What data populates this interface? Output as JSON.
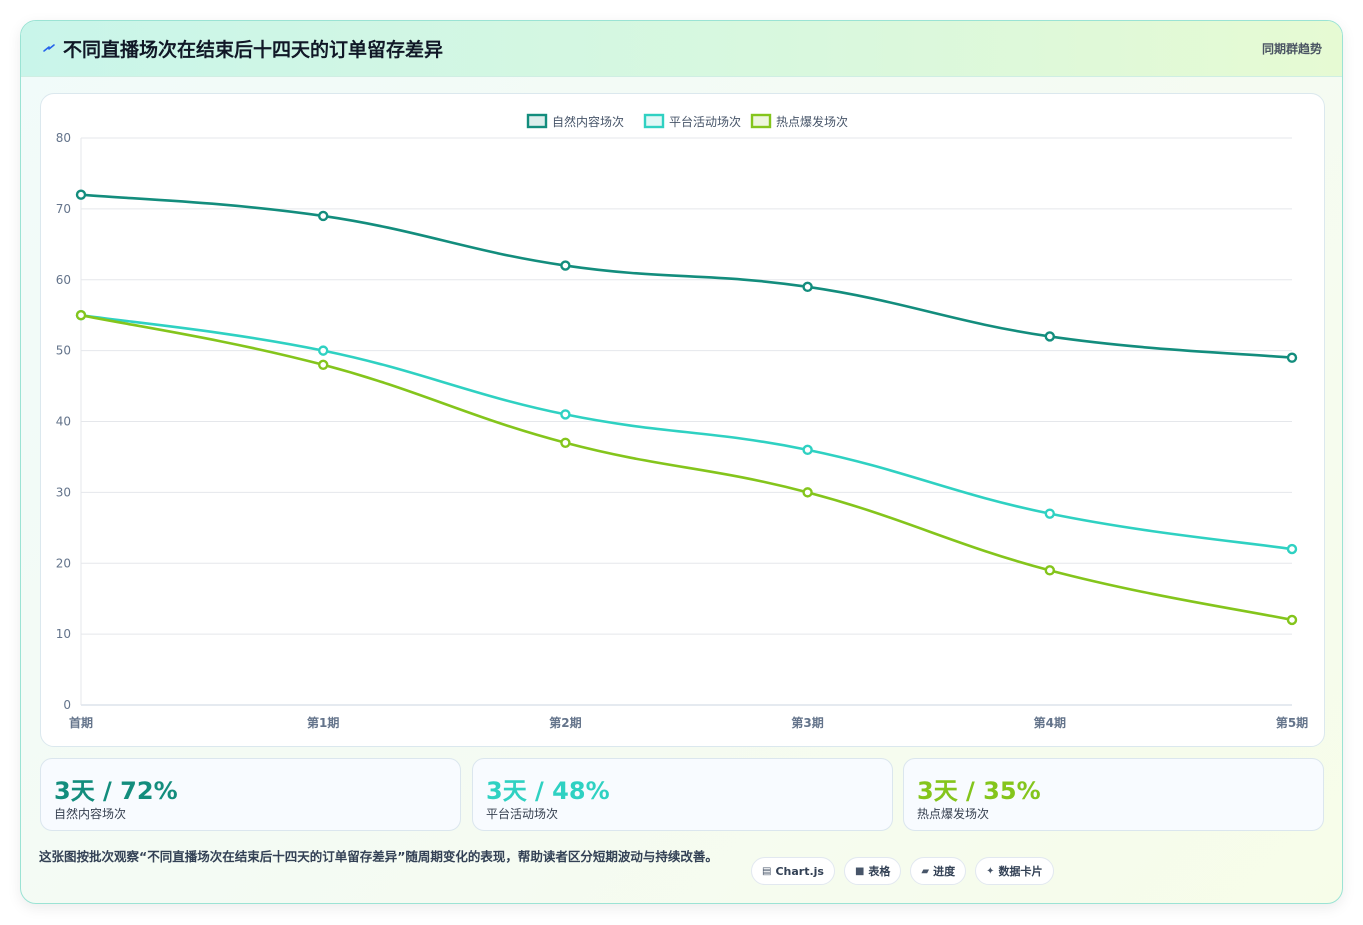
{
  "header": {
    "title": "不同直播场次在结束后十四天的订单留存差异",
    "badge": "同期群趋势"
  },
  "chart_data": {
    "type": "line",
    "categories": [
      "首期",
      "第1期",
      "第2期",
      "第3期",
      "第4期",
      "第5期"
    ],
    "series": [
      {
        "name": "自然内容场次",
        "color": "#138d7d",
        "values": [
          72,
          69,
          62,
          59,
          52,
          49
        ]
      },
      {
        "name": "平台活动场次",
        "color": "#2fd1c2",
        "values": [
          55,
          50,
          41,
          36,
          27,
          22
        ]
      },
      {
        "name": "热点爆发场次",
        "color": "#84c51c",
        "values": [
          55,
          48,
          37,
          30,
          19,
          12
        ]
      }
    ],
    "ylim": [
      0,
      80
    ],
    "yticks": [
      0,
      10,
      20,
      30,
      40,
      50,
      60,
      70,
      80
    ],
    "grid": true,
    "legend": "top-center"
  },
  "stats": [
    {
      "value": "3天 / 72%",
      "label": "自然内容场次",
      "color": "#138d7d"
    },
    {
      "value": "3天 / 48%",
      "label": "平台活动场次",
      "color": "#2fd1c2"
    },
    {
      "value": "3天 / 35%",
      "label": "热点爆发场次",
      "color": "#84c51c"
    }
  ],
  "description": "这张图按批次观察“不同直播场次在结束后十四天的订单留存差异”随周期变化的表现，帮助读者区分短期波动与持续改善。",
  "tags": [
    {
      "icon": "▤",
      "icon_name": "table-glyph-icon",
      "label": "Chart.js"
    },
    {
      "icon": "■",
      "icon_name": "square-icon",
      "label": "表格"
    },
    {
      "icon": "▰",
      "icon_name": "progress-icon",
      "label": "进度"
    },
    {
      "icon": "✦",
      "icon_name": "sparkle-icon",
      "label": "数据卡片"
    }
  ]
}
